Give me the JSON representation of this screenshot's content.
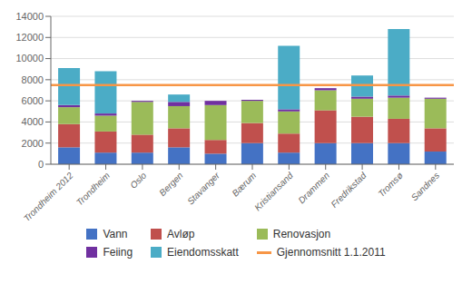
{
  "chart_data": {
    "type": "bar",
    "stacked": true,
    "categories": [
      "Trondheim 2012",
      "Trondheim",
      "Oslo",
      "Bergen",
      "Stavanger",
      "Bærum",
      "Kristiansand",
      "Drammen",
      "Fredrikstad",
      "Tromsø",
      "Sandnes"
    ],
    "series": [
      {
        "name": "Vann",
        "color": "#4472C4",
        "values": [
          1600,
          1100,
          1100,
          1600,
          1000,
          2000,
          1100,
          2000,
          2000,
          2000,
          1200
        ]
      },
      {
        "name": "Avløp",
        "color": "#C0504D",
        "values": [
          2200,
          2000,
          1700,
          1800,
          1300,
          1900,
          1800,
          3100,
          2500,
          2300,
          2200
        ]
      },
      {
        "name": "Renovasjon",
        "color": "#9BBB59",
        "values": [
          1600,
          1500,
          3100,
          2100,
          3300,
          2100,
          2100,
          1900,
          1700,
          2000,
          2800
        ]
      },
      {
        "name": "Feiing",
        "color": "#7030A0",
        "values": [
          200,
          200,
          100,
          400,
          400,
          100,
          200,
          200,
          200,
          200,
          100
        ]
      },
      {
        "name": "Eiendomsskatt",
        "color": "#4BACC6",
        "values": [
          3500,
          4000,
          0,
          700,
          0,
          0,
          6000,
          0,
          2000,
          6300,
          0
        ]
      }
    ],
    "reference_lines": [
      {
        "name": "Gjennomsnitt 1.1.2011",
        "value": 7500,
        "color": "#F79646"
      }
    ],
    "ylim": [
      0,
      14000
    ],
    "yticks": [
      0,
      2000,
      4000,
      6000,
      8000,
      10000,
      12000,
      14000
    ],
    "grid": true,
    "legend": "bottom"
  }
}
